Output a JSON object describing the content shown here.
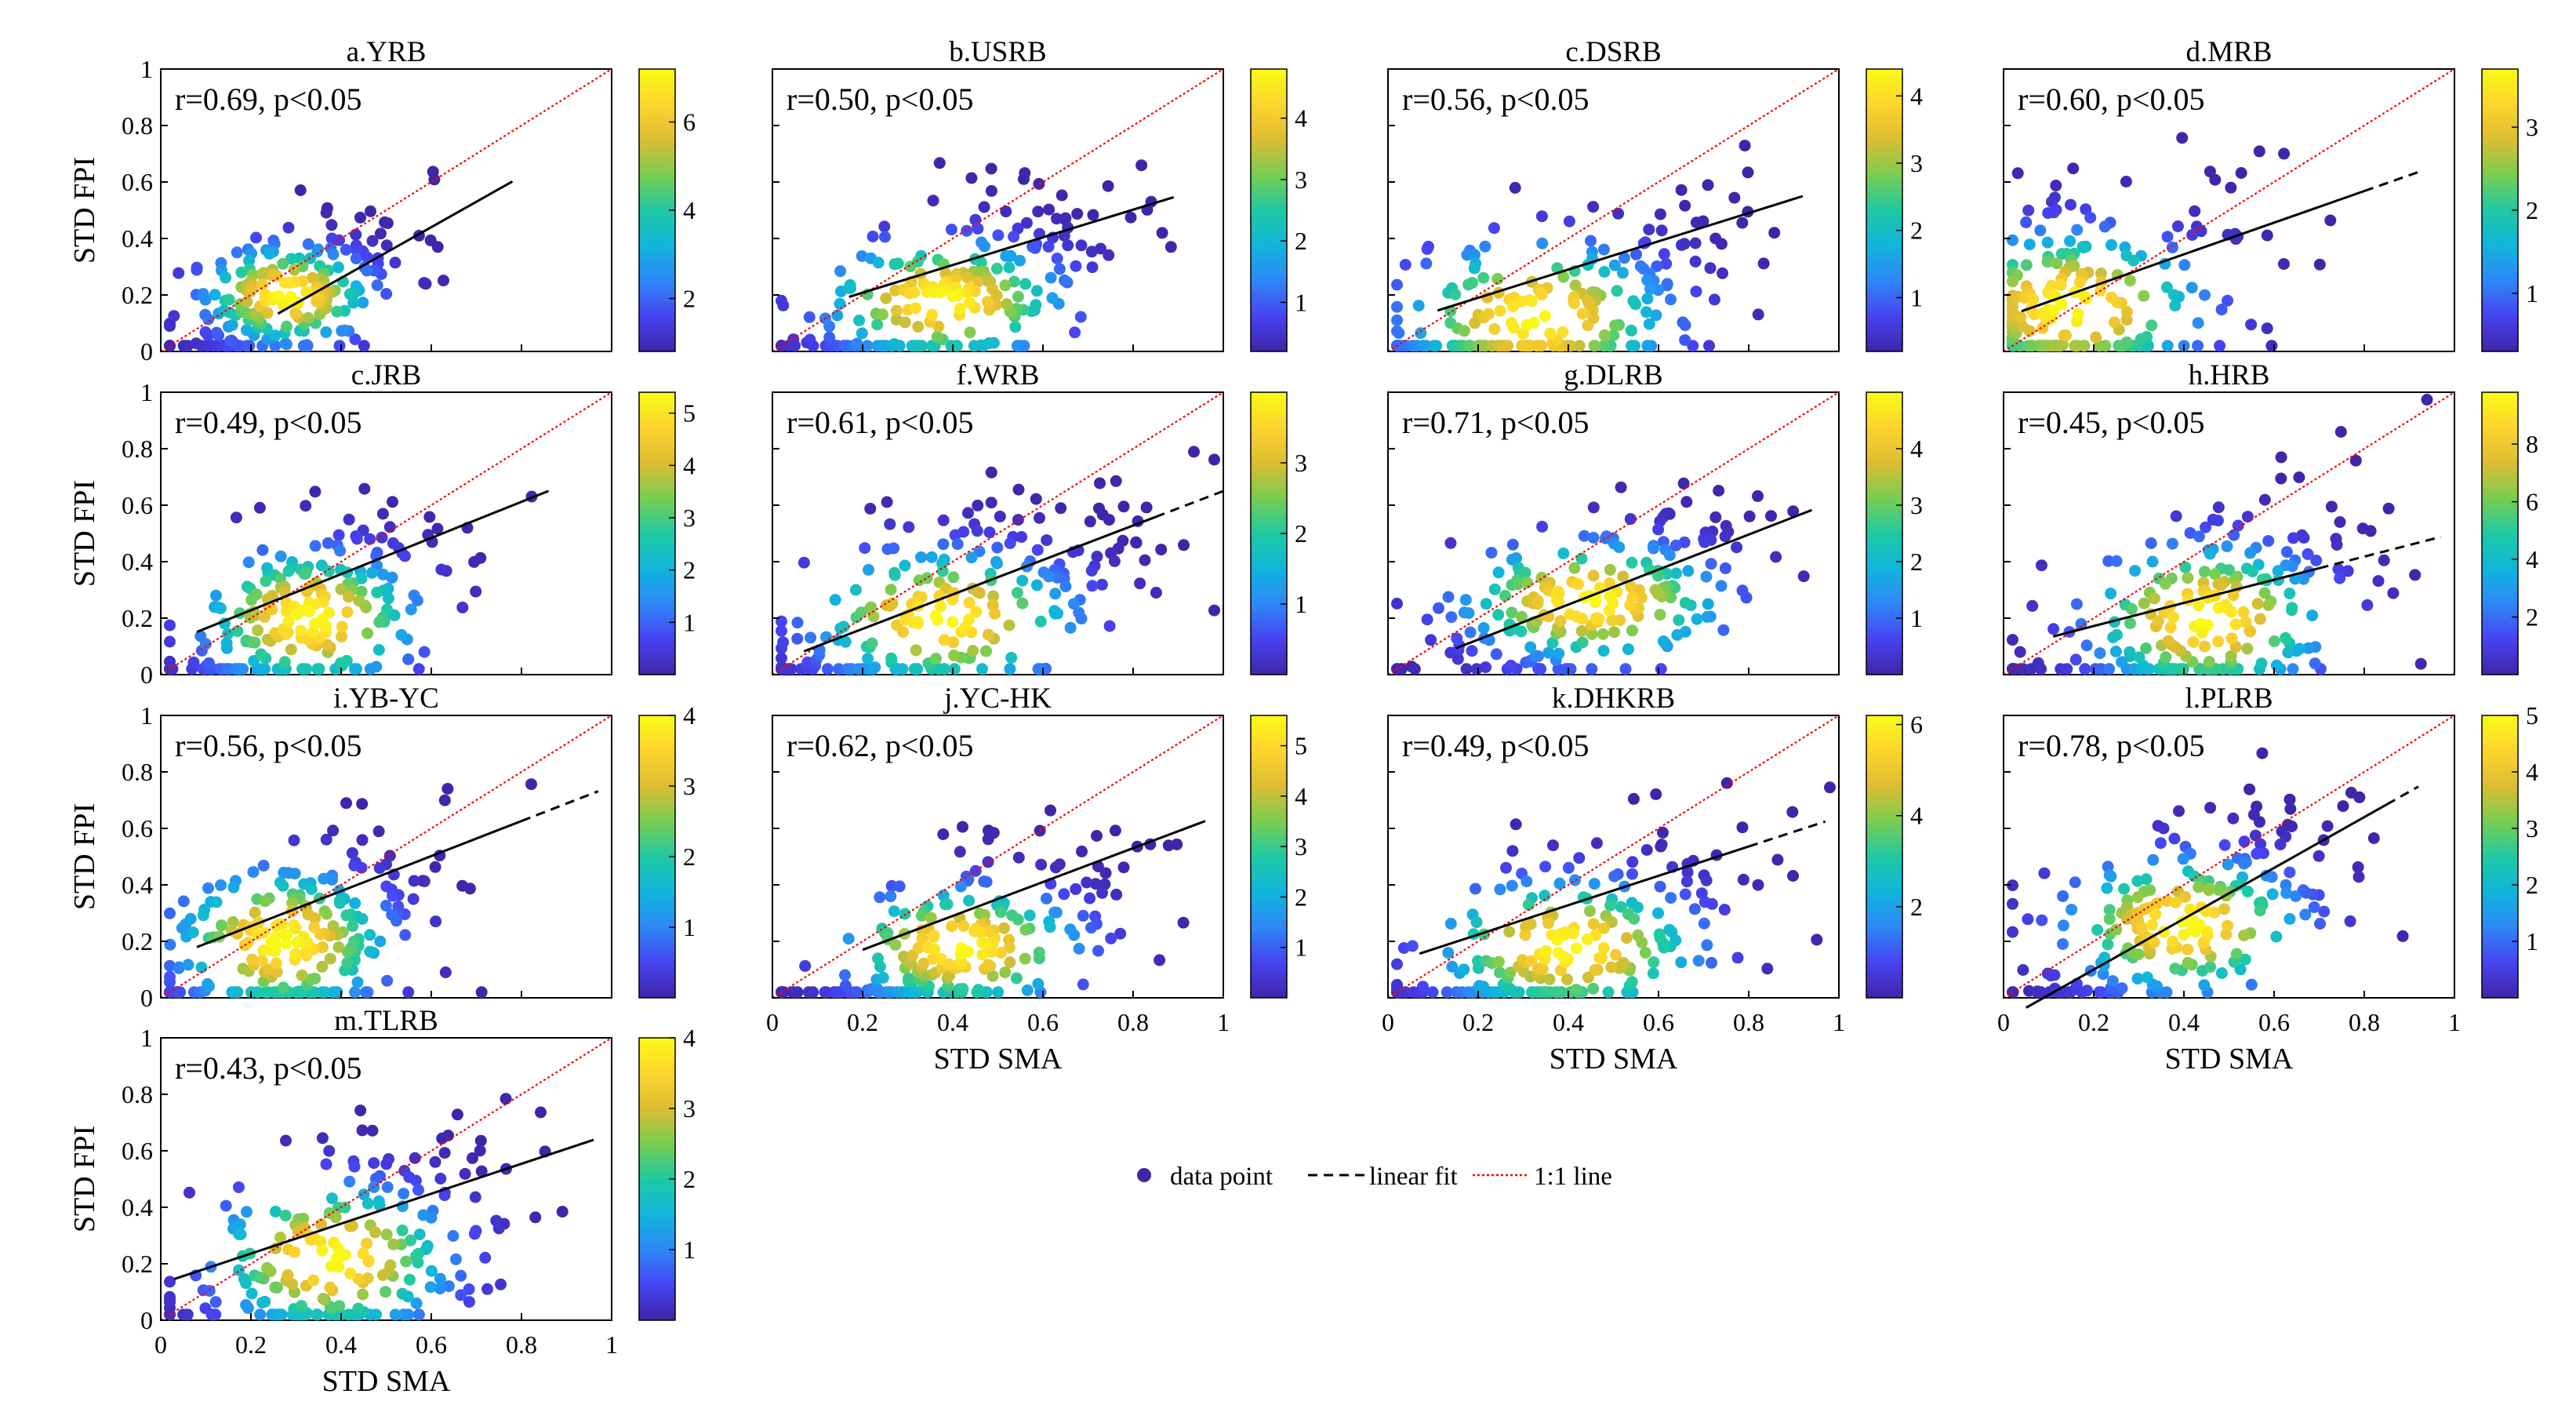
{
  "figure": {
    "ylabel": "STD FPI",
    "xlabel": "STD SMA",
    "xlabel_last": "STD SMA",
    "axis_ticks": [
      "0",
      "0.2",
      "0.4",
      "0.6",
      "0.8",
      "1"
    ]
  },
  "legend": {
    "data_point": "data point",
    "linear_fit": "linear fit",
    "one_to_one": "1:1 line"
  },
  "colors": {
    "one_to_one": "#ff0000",
    "fit": "#000000",
    "colormap": [
      "#3e26a8",
      "#4743f1",
      "#2e87f7",
      "#10b5dc",
      "#1fc9a3",
      "#79cd51",
      "#ddbd32",
      "#fdd42e",
      "#f9fb15"
    ]
  },
  "chart_data": [
    {
      "id": "a",
      "type": "scatter",
      "title": "a.YRB",
      "stat": "r=0.69, p<0.05",
      "xlim": [
        0,
        1
      ],
      "ylim": [
        0,
        1
      ],
      "center": [
        0.28,
        0.2
      ],
      "spread": [
        0.14,
        0.13
      ],
      "n": 230,
      "seed": 11,
      "fit": {
        "x0": 0.26,
        "x1": 0.78,
        "slope": 0.9,
        "intercept": -0.1,
        "dash_to": 0.78
      },
      "cbar": {
        "min": 0.8,
        "max": 7.2,
        "ticks": [
          2,
          4,
          6
        ]
      }
    },
    {
      "id": "b",
      "type": "scatter",
      "title": "b.USRB",
      "stat": "r=0.50, p<0.05",
      "xlim": [
        0,
        1
      ],
      "ylim": [
        0,
        1
      ],
      "center": [
        0.38,
        0.18
      ],
      "spread": [
        0.2,
        0.16
      ],
      "n": 230,
      "seed": 23,
      "fit": {
        "x0": 0.17,
        "x1": 0.89,
        "slope": 0.49,
        "intercept": 0.11,
        "dash_to": 0.89
      },
      "cbar": {
        "min": 0.2,
        "max": 4.8,
        "ticks": [
          1,
          2,
          3,
          4
        ]
      }
    },
    {
      "id": "c",
      "type": "scatter",
      "title": "c.DSRB",
      "stat": "r=0.56, p<0.05",
      "xlim": [
        0,
        1
      ],
      "ylim": [
        0,
        1
      ],
      "center": [
        0.33,
        0.12
      ],
      "spread": [
        0.22,
        0.2
      ],
      "n": 230,
      "seed": 37,
      "fit": {
        "x0": 0.11,
        "x1": 0.92,
        "slope": 0.5,
        "intercept": 0.09,
        "dash_to": 0.92
      },
      "cbar": {
        "min": 0.2,
        "max": 4.4,
        "ticks": [
          1,
          2,
          3,
          4
        ]
      }
    },
    {
      "id": "d",
      "type": "scatter",
      "title": "d.MRB",
      "stat": "r=0.60, p<0.05",
      "xlim": [
        0,
        1
      ],
      "ylim": [
        0,
        1
      ],
      "center": [
        0.15,
        0.16
      ],
      "spread": [
        0.22,
        0.2
      ],
      "n": 230,
      "seed": 41,
      "fit": {
        "x0": 0.04,
        "x1": 0.8,
        "slope": 0.56,
        "intercept": 0.12,
        "dash_to": 0.92
      },
      "cbar": {
        "min": 0.3,
        "max": 3.7,
        "ticks": [
          1,
          2,
          3
        ]
      }
    },
    {
      "id": "e",
      "type": "scatter",
      "title": "c.JRB",
      "stat": "r=0.49, p<0.05",
      "xlim": [
        0,
        1
      ],
      "ylim": [
        0,
        1
      ],
      "center": [
        0.33,
        0.2
      ],
      "spread": [
        0.18,
        0.18
      ],
      "n": 230,
      "seed": 53,
      "fit": {
        "x0": 0.08,
        "x1": 0.86,
        "slope": 0.64,
        "intercept": 0.1,
        "dash_to": 0.86
      },
      "cbar": {
        "min": 0,
        "max": 5.4,
        "ticks": [
          1,
          2,
          3,
          4,
          5
        ]
      }
    },
    {
      "id": "f",
      "type": "scatter",
      "title": "f.WRB",
      "stat": "r=0.61, p<0.05",
      "xlim": [
        0,
        1
      ],
      "ylim": [
        0,
        1
      ],
      "center": [
        0.38,
        0.2
      ],
      "spread": [
        0.22,
        0.18
      ],
      "n": 230,
      "seed": 67,
      "fit": {
        "x0": 0.07,
        "x1": 0.85,
        "slope": 0.61,
        "intercept": 0.04,
        "dash_to": 1.0
      },
      "cbar": {
        "min": 0,
        "max": 4.0,
        "ticks": [
          1,
          2,
          3
        ]
      }
    },
    {
      "id": "g",
      "type": "scatter",
      "title": "g.DLRB",
      "stat": "r=0.71, p<0.05",
      "xlim": [
        0,
        1
      ],
      "ylim": [
        0,
        1
      ],
      "center": [
        0.45,
        0.26
      ],
      "spread": [
        0.22,
        0.16
      ],
      "n": 230,
      "seed": 71,
      "fit": {
        "x0": 0.15,
        "x1": 0.94,
        "slope": 0.62,
        "intercept": 0.0,
        "dash_to": 0.94
      },
      "cbar": {
        "min": 0,
        "max": 5.0,
        "ticks": [
          1,
          2,
          3,
          4
        ]
      }
    },
    {
      "id": "h",
      "type": "scatter",
      "title": "h.HRB",
      "stat": "r=0.45, p<0.05",
      "xlim": [
        0,
        1
      ],
      "ylim": [
        0,
        1
      ],
      "center": [
        0.45,
        0.2
      ],
      "spread": [
        0.2,
        0.2
      ],
      "n": 230,
      "seed": 83,
      "fit": {
        "x0": 0.11,
        "x1": 0.7,
        "slope": 0.41,
        "intercept": 0.09,
        "dash_to": 0.97
      },
      "cbar": {
        "min": 0,
        "max": 9.8,
        "ticks": [
          2,
          4,
          6,
          8
        ]
      }
    },
    {
      "id": "i",
      "type": "scatter",
      "title": "i.YB-YC",
      "stat": "r=0.56, p<0.05",
      "xlim": [
        0,
        1
      ],
      "ylim": [
        0,
        1
      ],
      "center": [
        0.27,
        0.2
      ],
      "spread": [
        0.18,
        0.19
      ],
      "n": 230,
      "seed": 97,
      "fit": {
        "x0": 0.08,
        "x1": 0.8,
        "slope": 0.62,
        "intercept": 0.13,
        "dash_to": 0.97
      },
      "cbar": {
        "min": 0,
        "max": 4.0,
        "ticks": [
          1,
          2,
          3,
          4
        ]
      }
    },
    {
      "id": "j",
      "type": "scatter",
      "title": "j.YC-HK",
      "stat": "r=0.62, p<0.05",
      "xlim": [
        0,
        1
      ],
      "ylim": [
        0,
        1
      ],
      "center": [
        0.42,
        0.18
      ],
      "spread": [
        0.2,
        0.16
      ],
      "n": 230,
      "seed": 103,
      "fit": {
        "x0": 0.2,
        "x1": 0.96,
        "slope": 0.6,
        "intercept": 0.05,
        "dash_to": 0.96
      },
      "cbar": {
        "min": 0,
        "max": 5.6,
        "ticks": [
          1,
          2,
          3,
          4,
          5
        ]
      }
    },
    {
      "id": "k",
      "type": "scatter",
      "title": "k.DHKRB",
      "stat": "r=0.49, p<0.05",
      "xlim": [
        0,
        1
      ],
      "ylim": [
        0,
        1
      ],
      "center": [
        0.4,
        0.18
      ],
      "spread": [
        0.22,
        0.18
      ],
      "n": 230,
      "seed": 113,
      "fit": {
        "x0": 0.07,
        "x1": 0.8,
        "slope": 0.52,
        "intercept": 0.12,
        "dash_to": 0.97
      },
      "cbar": {
        "min": 0,
        "max": 6.2,
        "ticks": [
          2,
          4,
          6
        ]
      }
    },
    {
      "id": "l",
      "type": "scatter",
      "title": "l.PLRB",
      "stat": "r=0.78, p<0.05",
      "xlim": [
        0,
        1
      ],
      "ylim": [
        0,
        1
      ],
      "center": [
        0.4,
        0.26
      ],
      "spread": [
        0.2,
        0.18
      ],
      "n": 230,
      "seed": 127,
      "fit": {
        "x0": 0.05,
        "x1": 0.85,
        "slope": 0.9,
        "intercept": -0.08,
        "dash_to": 0.92
      },
      "cbar": {
        "min": 0,
        "max": 5.0,
        "ticks": [
          1,
          2,
          3,
          4,
          5
        ]
      }
    },
    {
      "id": "m",
      "type": "scatter",
      "title": "m.TLRB",
      "stat": "r=0.43, p<0.05",
      "xlim": [
        0,
        1
      ],
      "ylim": [
        0,
        1
      ],
      "center": [
        0.38,
        0.22
      ],
      "spread": [
        0.2,
        0.2
      ],
      "n": 230,
      "seed": 131,
      "fit": {
        "x0": 0.03,
        "x1": 0.96,
        "slope": 0.53,
        "intercept": 0.13,
        "dash_to": 0.96
      },
      "cbar": {
        "min": 0,
        "max": 4.0,
        "ticks": [
          1,
          2,
          3,
          4
        ]
      }
    }
  ]
}
